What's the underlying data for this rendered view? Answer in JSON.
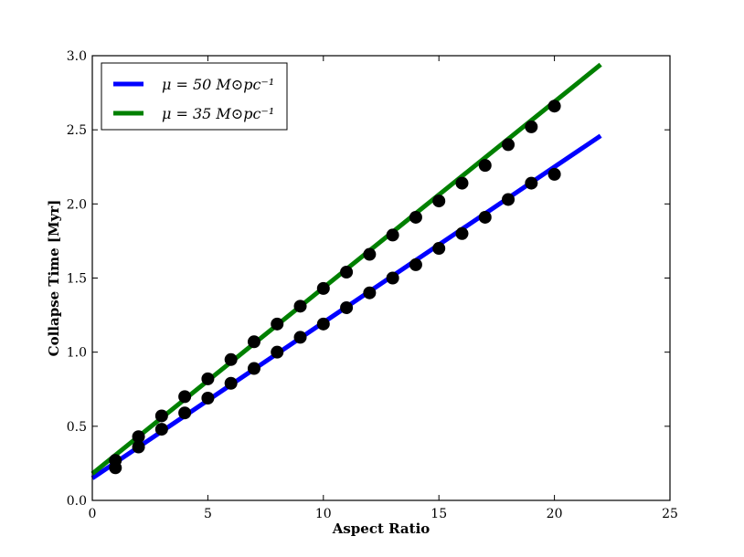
{
  "chart_data": {
    "type": "scatter",
    "xlabel": "Aspect Ratio",
    "ylabel": "Collapse Time [Myr]",
    "xlim": [
      0,
      25
    ],
    "ylim": [
      0.0,
      3.0
    ],
    "xticks": [
      "0",
      "5",
      "10",
      "15",
      "20",
      "25"
    ],
    "yticks": [
      "0.0",
      "0.5",
      "1.0",
      "1.5",
      "2.0",
      "2.5",
      "3.0"
    ],
    "grid": false,
    "legend_position": "top-left",
    "series": [
      {
        "name": "μ = 50 M⊙pc⁻¹",
        "color": "#0000ff",
        "line": {
          "x": [
            0,
            22
          ],
          "y": [
            0.15,
            2.46
          ]
        },
        "points": {
          "x": [
            1,
            2,
            3,
            4,
            5,
            6,
            7,
            8,
            9,
            10,
            11,
            12,
            13,
            14,
            15,
            16,
            17,
            18,
            19,
            20
          ],
          "y": [
            0.22,
            0.36,
            0.48,
            0.59,
            0.69,
            0.79,
            0.89,
            1.0,
            1.1,
            1.19,
            1.3,
            1.4,
            1.5,
            1.59,
            1.7,
            1.8,
            1.91,
            2.03,
            2.14,
            2.2
          ]
        }
      },
      {
        "name": "μ = 35 M⊙pc⁻¹",
        "color": "#008000",
        "line": {
          "x": [
            0,
            22
          ],
          "y": [
            0.18,
            2.94
          ]
        },
        "points": {
          "x": [
            1,
            2,
            3,
            4,
            5,
            6,
            7,
            8,
            9,
            10,
            11,
            12,
            13,
            14,
            15,
            16,
            17,
            18,
            19,
            20
          ],
          "y": [
            0.27,
            0.43,
            0.57,
            0.7,
            0.82,
            0.95,
            1.07,
            1.19,
            1.31,
            1.43,
            1.54,
            1.66,
            1.79,
            1.91,
            2.02,
            2.14,
            2.26,
            2.4,
            2.52,
            2.66
          ]
        }
      }
    ],
    "marker_color": "#000000"
  }
}
